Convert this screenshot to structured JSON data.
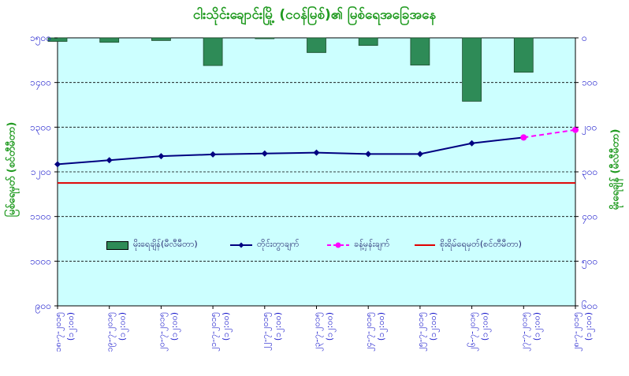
{
  "chart_data": {
    "type": "bar+line",
    "title": "ငါးသိုင်းချောင်းမြို့ (ငဝန်မြစ်)၏ မြစ်ရေအခြေအနေ",
    "y_left_label": "မြစ်ရေမှတ် (စင်တီမီတာ)",
    "y_right_label": "မိုးရေချိန် (မီလီမီတာ)",
    "y_left_range": [
      900,
      1500
    ],
    "y_left_ticks": [
      "၉၀၀",
      "၁၀၀၀",
      "၁၁၀၀",
      "၁၂၀၀",
      "၁၃၀၀",
      "၁၄၀၀",
      "၁၅၀၀"
    ],
    "y_right_range": [
      0,
      600
    ],
    "y_right_ticks": [
      "၀",
      "၁၀၀",
      "၂၀၀",
      "၃၀၀",
      "၄၀၀",
      "၅၀၀",
      "၆၀၀"
    ],
    "categories": [
      "၁၈-၇-၂၀၁၅ (၁၂:၀၀)",
      "၁၉-၇-၂၀၁၅ (၁၂:၀၀)",
      "၂၀-၇-၂၀၁၅ (၁၂:၀၀)",
      "၂၁-၇-၂၀၁၅ (၁၂:၀၀)",
      "၂၂-၇-၂၀၁၅ (၁၂:၀၀)",
      "၂၃-၇-၂၀၁၅ (၁၂:၀၀)",
      "၂၄-၇-၂၀၁၅ (၁၂:၀၀)",
      "၂၅-၇-၂၀၁၅ (၁၂:၀၀)",
      "၂၆-၇-၂၀၁၅ (၁၂:၀၀)",
      "၂၇-၇-၂၀၁၅ (၁၂:၀၀)",
      "၂၈-၇-၂၀၁၅ (၁၂:၀၀)"
    ],
    "series": [
      {
        "name": "မိုးရေချိန်(မီလီမီတာ)",
        "type": "bar",
        "axis": "right",
        "color": "#2e8b57",
        "values": [
          8,
          10,
          6,
          62,
          2,
          33,
          17,
          61,
          142,
          77,
          null
        ]
      },
      {
        "name": "တိုင်းတွာချက်",
        "type": "line",
        "axis": "left",
        "color": "#000080",
        "values": [
          1217,
          1226,
          1235,
          1239,
          1241,
          1243,
          1240,
          1240,
          1264,
          1277,
          null
        ]
      },
      {
        "name": "ခန့်မှန်းချက်",
        "type": "line-dashed",
        "axis": "left",
        "color": "#ff00ff",
        "values": [
          null,
          null,
          null,
          null,
          null,
          null,
          null,
          null,
          null,
          1277,
          1294
        ]
      },
      {
        "name": "စိုးရိမ်ရေမှတ်(စင်တီမီတာ)",
        "type": "hline",
        "axis": "left",
        "color": "#e00000",
        "value": 1175
      }
    ],
    "grid": true,
    "legend_position": "inside-middle"
  },
  "colors": {
    "plot_background": "#ccffff",
    "axis_text": "#1a1acc",
    "title_text": "#1f9a1f"
  }
}
